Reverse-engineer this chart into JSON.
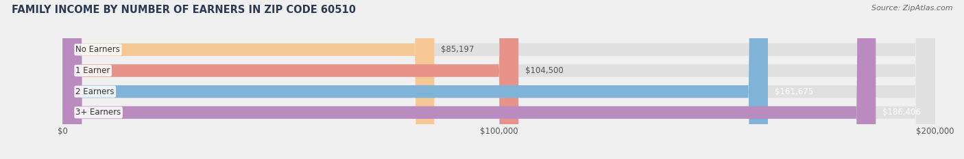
{
  "title": "FAMILY INCOME BY NUMBER OF EARNERS IN ZIP CODE 60510",
  "source": "Source: ZipAtlas.com",
  "categories": [
    "No Earners",
    "1 Earner",
    "2 Earners",
    "3+ Earners"
  ],
  "values": [
    85197,
    104500,
    161675,
    186406
  ],
  "labels": [
    "$85,197",
    "$104,500",
    "$161,675",
    "$186,406"
  ],
  "bar_colors": [
    "#f5c895",
    "#e8938a",
    "#7fb3d8",
    "#b98bbf"
  ],
  "label_colors": [
    "#555555",
    "#555555",
    "#ffffff",
    "#ffffff"
  ],
  "x_ticks": [
    0,
    100000,
    200000
  ],
  "x_tick_labels": [
    "$0",
    "$100,000",
    "$200,000"
  ],
  "xlim": [
    0,
    200000
  ],
  "title_color": "#2b3a52",
  "title_fontsize": 10.5,
  "source_fontsize": 8,
  "category_fontsize": 8.5,
  "value_fontsize": 8.5,
  "tick_fontsize": 8.5,
  "bg_color": "#f0f0f0",
  "bar_bg_color": "#e0e0e0",
  "bar_height": 0.6
}
